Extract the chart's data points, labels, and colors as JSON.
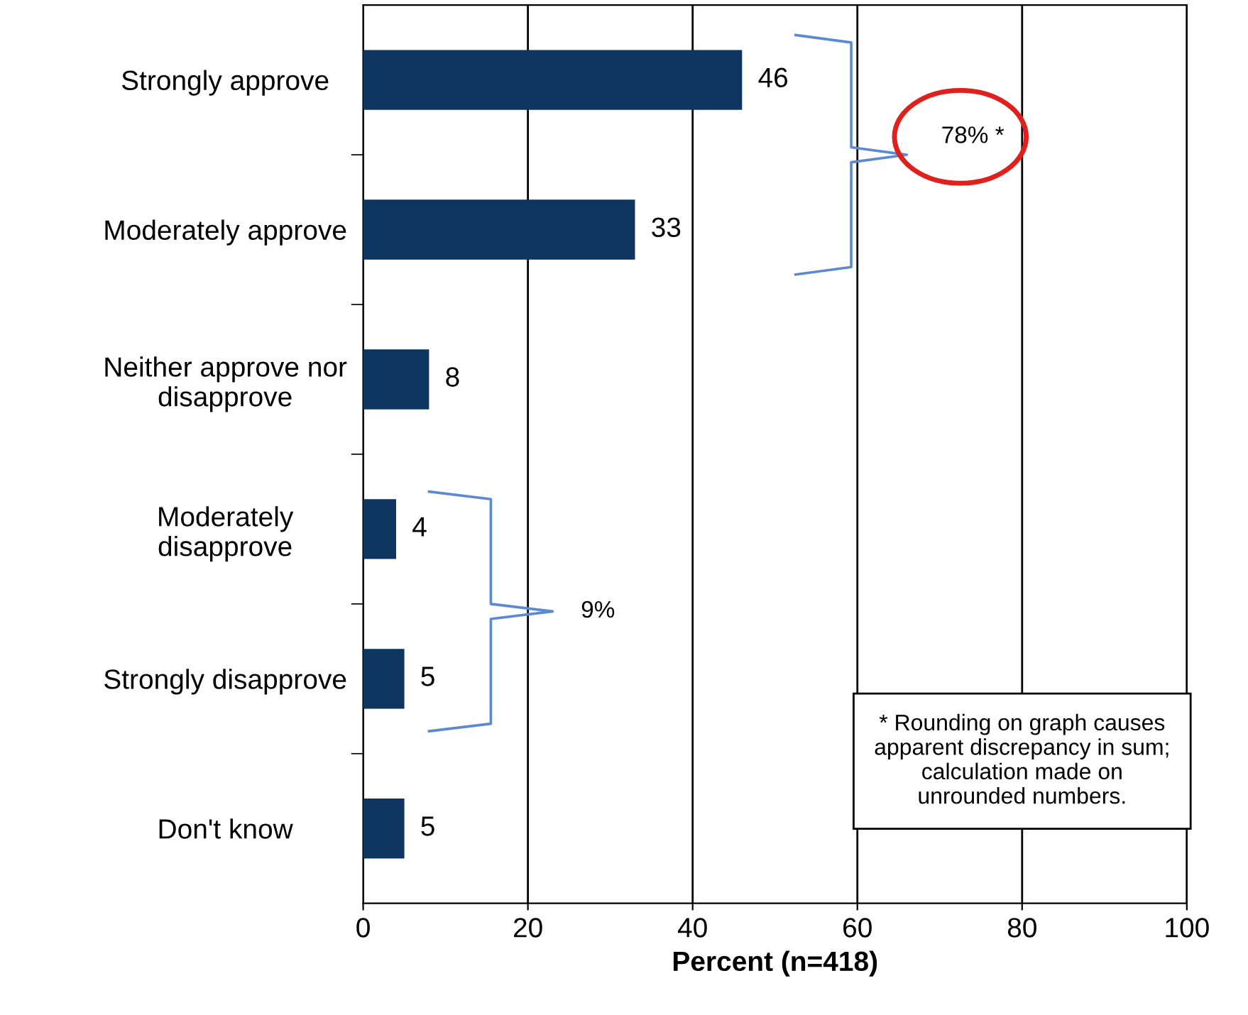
{
  "chart_data": {
    "type": "bar",
    "orientation": "horizontal",
    "categories": [
      "Strongly approve",
      "Moderately approve",
      "Neither approve nor\ndisapprove",
      "Moderately\ndisapprove",
      "Strongly disapprove",
      "Don't know"
    ],
    "values": [
      46,
      33,
      8,
      4,
      5,
      5
    ],
    "color": "#0d355f",
    "data_labels": true,
    "xlabel": "Percent (n=418)",
    "xlim": [
      0,
      100
    ],
    "xticks": [
      0,
      20,
      40,
      60,
      80,
      100
    ],
    "grid": "x",
    "annotations": [
      "78% *",
      "9%",
      "* Rounding on graph causes\napparent discrepancy in sum;\ncalculation made on\nunrounded numbers."
    ]
  }
}
